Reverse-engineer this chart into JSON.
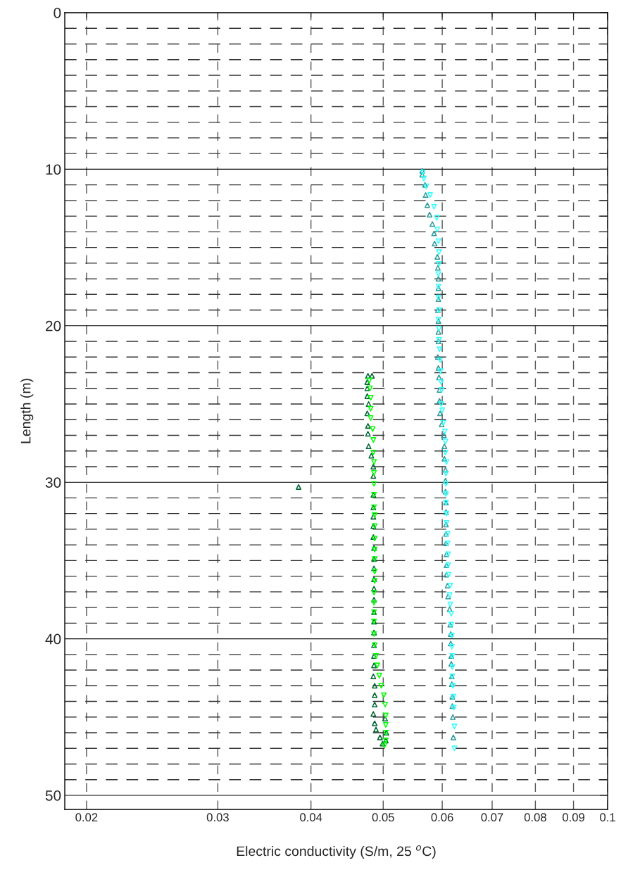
{
  "chart_data": {
    "type": "scatter",
    "xlabel": "Electric conductivity (S/m, 25 $^{o}$C)",
    "ylabel": "Length (m)",
    "log": "x",
    "grid": true,
    "xlim": [
      0.0187,
      0.1
    ],
    "ylim": [
      50.9,
      0
    ],
    "xticks": [
      0.02,
      0.03,
      0.04,
      0.05,
      0.06,
      0.07,
      0.08,
      0.09,
      0.1
    ],
    "yticks": [
      0,
      {
        "value": 1,
        "label": null
      },
      {
        "value": 2,
        "label": null
      },
      {
        "value": 3,
        "label": null
      },
      {
        "value": 4,
        "label": null
      },
      {
        "value": 5,
        "label": null
      },
      {
        "value": 6,
        "label": null
      },
      {
        "value": 7,
        "label": null
      },
      {
        "value": 8,
        "label": null
      },
      {
        "value": 9,
        "label": null
      },
      10,
      {
        "value": 11,
        "label": null
      },
      {
        "value": 12,
        "label": null
      },
      {
        "value": 13,
        "label": null
      },
      {
        "value": 14,
        "label": null
      },
      {
        "value": 15,
        "label": null
      },
      {
        "value": 16,
        "label": null
      },
      {
        "value": 17,
        "label": null
      },
      {
        "value": 18,
        "label": null
      },
      {
        "value": 19,
        "label": null
      },
      20,
      {
        "value": 21,
        "label": null
      },
      {
        "value": 22,
        "label": null
      },
      {
        "value": 23,
        "label": null
      },
      {
        "value": 24,
        "label": null
      },
      {
        "value": 25,
        "label": null
      },
      {
        "value": 26,
        "label": null
      },
      {
        "value": 27,
        "label": null
      },
      {
        "value": 28,
        "label": null
      },
      {
        "value": 29,
        "label": null
      },
      30,
      {
        "value": 31,
        "label": null
      },
      {
        "value": 32,
        "label": null
      },
      {
        "value": 33,
        "label": null
      },
      {
        "value": 34,
        "label": null
      },
      {
        "value": 35,
        "label": null
      },
      {
        "value": 36,
        "label": null
      },
      {
        "value": 37,
        "label": null
      },
      {
        "value": 38,
        "label": null
      },
      {
        "value": 39,
        "label": null
      },
      40,
      {
        "value": 41,
        "label": null
      },
      {
        "value": 42,
        "label": null
      },
      {
        "value": 43,
        "label": null
      },
      {
        "value": 44,
        "label": null
      },
      {
        "value": 45,
        "label": null
      },
      {
        "value": 46,
        "label": null
      },
      {
        "value": 47,
        "label": null
      },
      {
        "value": 48,
        "label": null
      },
      {
        "value": 49,
        "label": null
      },
      50
    ],
    "series": [
      {
        "color": "#006633",
        "marker": "triangle",
        "x": [
          0.0477,
          0.0483,
          0.0476,
          0.0476,
          0.0476,
          0.0478,
          0.0476,
          0.0477,
          0.0477,
          0.0478,
          0.0482,
          0.0485,
          0.0485,
          0.0385,
          0.0485,
          0.0485,
          0.0485,
          0.0485,
          0.0485,
          0.0486,
          0.0486,
          0.0486,
          0.0486,
          0.0486,
          0.0486,
          0.0486,
          0.0486,
          0.0486,
          0.0486,
          0.0486,
          0.0486,
          0.0485,
          0.0487,
          0.0487,
          0.0487,
          0.0485,
          0.0487,
          0.0489,
          0.0495,
          0.0499,
          0.0504,
          0.0505,
          0.0503
        ],
        "values": [
          23.2,
          23.2,
          23.6,
          24.0,
          24.5,
          25.0,
          25.6,
          26.4,
          26.9,
          27.7,
          28.3,
          29.0,
          29.6,
          30.3,
          30.8,
          31.6,
          32.2,
          32.8,
          33.5,
          34.2,
          34.9,
          35.5,
          36.2,
          36.8,
          37.5,
          38.3,
          38.9,
          39.6,
          40.4,
          41.1,
          41.7,
          42.4,
          43.0,
          43.6,
          44.2,
          44.8,
          45.4,
          45.8,
          46.3,
          46.7,
          46.5,
          46.0,
          45.1
        ]
      },
      {
        "color": "#00ff00",
        "marker": "triangle_down",
        "x": [
          0.0479,
          0.048,
          0.0481,
          0.0481,
          0.0481,
          0.0484,
          0.0485,
          0.0485,
          0.0486,
          0.0486,
          0.0486,
          0.0486,
          0.0486,
          0.0487,
          0.0487,
          0.0487,
          0.0487,
          0.0487,
          0.0487,
          0.0487,
          0.0486,
          0.0486,
          0.0486,
          0.0486,
          0.0486,
          0.0487,
          0.0489,
          0.0491,
          0.0494,
          0.0497,
          0.0501,
          0.0503,
          0.0504,
          0.0504,
          0.0504,
          0.0504,
          0.0502
        ],
        "values": [
          23.5,
          24.0,
          24.6,
          25.3,
          25.9,
          26.6,
          27.3,
          28.1,
          28.7,
          29.4,
          30.1,
          30.8,
          31.6,
          32.1,
          32.8,
          33.6,
          34.3,
          34.9,
          35.7,
          36.3,
          37.05,
          37.7,
          38.3,
          38.9,
          39.7,
          40.4,
          41.1,
          41.7,
          42.35,
          43.0,
          43.6,
          44.2,
          44.9,
          45.5,
          46.0,
          46.5,
          46.8
        ]
      },
      {
        "color": "#339999",
        "marker": "triangle",
        "x": [
          0.0564,
          0.0564,
          0.0569,
          0.057,
          0.0573,
          0.0577,
          0.0582,
          0.0585,
          0.0586,
          0.0591,
          0.0592,
          0.0593,
          0.0593,
          0.0593,
          0.0592,
          0.0593,
          0.0593,
          0.0593,
          0.0592,
          0.0593,
          0.0594,
          0.0595,
          0.0595,
          0.0596,
          0.0599,
          0.0603,
          0.0604,
          0.0604,
          0.0606,
          0.0606,
          0.0606,
          0.0607,
          0.0607,
          0.0607,
          0.0607,
          0.0607,
          0.0608,
          0.0608,
          0.0608,
          0.061,
          0.0611,
          0.0614,
          0.0615,
          0.0616,
          0.0616,
          0.0617,
          0.0617,
          0.0618,
          0.0618,
          0.0619,
          0.0619,
          0.062,
          0.0621
        ],
        "values": [
          10.1,
          10.35,
          11.0,
          11.65,
          12.3,
          12.9,
          13.5,
          14.1,
          14.75,
          15.6,
          16.3,
          17.0,
          17.6,
          18.3,
          19.0,
          19.7,
          20.4,
          21.0,
          22.0,
          22.7,
          23.3,
          24.1,
          24.8,
          25.6,
          26.3,
          27.0,
          27.7,
          28.5,
          29.2,
          29.9,
          30.6,
          31.3,
          31.9,
          32.7,
          33.3,
          33.9,
          34.6,
          35.3,
          35.9,
          36.6,
          37.3,
          38.1,
          39.1,
          39.7,
          40.3,
          41.1,
          41.6,
          42.4,
          42.9,
          43.7,
          44.3,
          45.0,
          46.3
        ]
      },
      {
        "color": "#33ffff",
        "marker": "triangle_down",
        "x": [
          0.0565,
          0.0567,
          0.0571,
          0.0578,
          0.0585,
          0.059,
          0.0591,
          0.0593,
          0.0594,
          0.0594,
          0.0593,
          0.0593,
          0.0593,
          0.0594,
          0.0593,
          0.0594,
          0.0594,
          0.0595,
          0.0596,
          0.0597,
          0.0598,
          0.0599,
          0.0598,
          0.06,
          0.0602,
          0.0605,
          0.0606,
          0.0606,
          0.0608,
          0.0607,
          0.0607,
          0.0607,
          0.0607,
          0.0608,
          0.0608,
          0.061,
          0.061,
          0.0611,
          0.0611,
          0.0612,
          0.0615,
          0.0614,
          0.0615,
          0.0617,
          0.0617,
          0.0618,
          0.0618,
          0.0619,
          0.0619,
          0.0619,
          0.062,
          0.0621,
          0.0622,
          0.0623,
          0.0623
        ],
        "values": [
          10.2,
          10.6,
          11.1,
          11.65,
          12.4,
          13.1,
          13.85,
          14.6,
          15.3,
          16.05,
          16.7,
          17.5,
          18.2,
          19.0,
          19.6,
          20.2,
          20.9,
          21.5,
          22.2,
          22.9,
          23.6,
          24.1,
          25.0,
          25.4,
          26.2,
          26.75,
          27.4,
          28.1,
          28.7,
          29.45,
          30.1,
          30.75,
          31.3,
          32.0,
          32.6,
          33.3,
          33.9,
          34.6,
          35.3,
          35.9,
          36.6,
          37.2,
          37.8,
          38.4,
          39.1,
          39.8,
          40.5,
          41.1,
          41.8,
          42.4,
          43.0,
          43.7,
          44.4,
          45.6,
          47.0
        ]
      }
    ]
  }
}
